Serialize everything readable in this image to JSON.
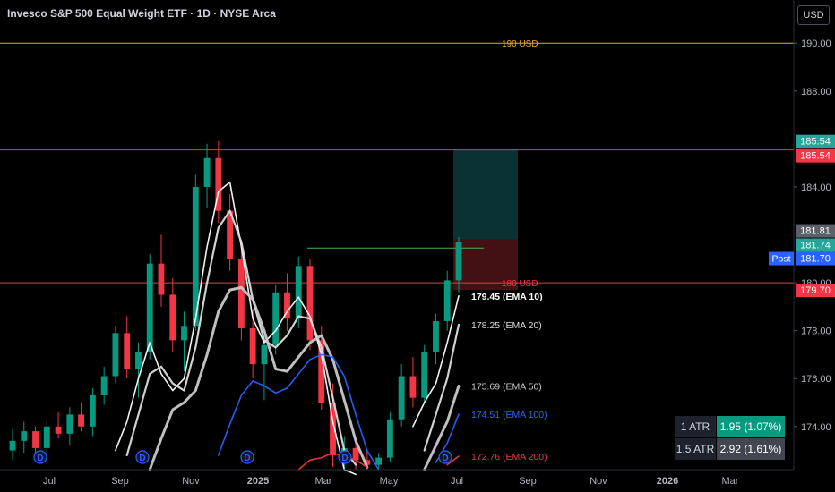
{
  "header": {
    "title": "Invesco S&P 500 Equal Weight ETF · 1D · NYSE Arca",
    "currency_button": "USD"
  },
  "colors": {
    "background": "#000000",
    "axis_text": "#b2b5be",
    "ema10": "#ffffff",
    "ema20": "#dcdcdc",
    "ema50": "#c9c9c9",
    "ema100": "#2962ff",
    "ema200": "#f23645",
    "resistance_line": "#f23645",
    "level_190": "#f5a623",
    "target_zone": "#0d3b3b",
    "stop_zone": "#4a1216",
    "entry_line": "#4caf50",
    "price_label_teal": "#26a69a",
    "price_label_red": "#f23645",
    "price_label_gray": "#5d606b",
    "price_label_blue": "#2962ff",
    "atr_green": "#089981",
    "atr_gray": "#434651"
  },
  "chart_data": {
    "type": "candlestick",
    "y_axis": {
      "min": 172.2,
      "max": 191.8,
      "ticks": [
        "190.00",
        "188.00",
        "184.00",
        "180.00",
        "178.00",
        "176.00",
        "174.00"
      ],
      "tick_values": [
        190,
        188,
        184,
        180,
        178,
        176,
        174
      ]
    },
    "x_axis": {
      "labels": [
        "Jul",
        "Sep",
        "Nov",
        "2025",
        "Mar",
        "May",
        "Jul",
        "Sep",
        "Nov",
        "2026",
        "Mar"
      ]
    },
    "horizontal_levels": [
      {
        "value": 190,
        "label": "190 USD",
        "color": "#f5a623"
      },
      {
        "value": 185.54,
        "label": "",
        "color": "#f23645"
      },
      {
        "value": 180,
        "label": "180 USD",
        "color": "#f23645"
      },
      {
        "value": 181.7,
        "label": "",
        "color": "#2962ff"
      }
    ],
    "entry_line": {
      "value": 181.45
    },
    "position": {
      "target": 185.54,
      "entry": 181.81,
      "stop": 179.7
    },
    "price_labels": [
      {
        "text": "185.54",
        "value": 185.54,
        "color": "#26a69a",
        "offset": -8
      },
      {
        "text": "185.54",
        "value": 185.54,
        "color": "#f23645",
        "offset": 8
      },
      {
        "text": "181.81",
        "value": 181.81,
        "color": "#5d606b",
        "offset": -8
      },
      {
        "text": "181.74",
        "value": 181.74,
        "color": "#26a69a",
        "offset": 8
      },
      {
        "text": "181.70",
        "value": 181.7,
        "color": "#2962ff",
        "offset": 24
      },
      {
        "text": "179.70",
        "value": 179.7,
        "color": "#f23645",
        "offset": 0
      }
    ],
    "post_label": "Post",
    "ema_labels": [
      {
        "text": "179.45 (EMA 10)",
        "value": 179.45,
        "color": "#ffffff"
      },
      {
        "text": "178.25 (EMA 20)",
        "value": 178.25,
        "color": "#dcdcdc"
      },
      {
        "text": "175.69 (EMA 50)",
        "value": 175.69,
        "color": "#c9c9c9"
      },
      {
        "text": "174.51 (EMA 100)",
        "value": 174.51,
        "color": "#2962ff"
      },
      {
        "text": "172.76 (EMA 200)",
        "value": 172.76,
        "color": "#f23645"
      }
    ],
    "dividend_marker": "D",
    "series": [
      {
        "name": "EMA 10",
        "color": "#ffffff",
        "values": [
          null,
          null,
          null,
          null,
          null,
          null,
          null,
          null,
          null,
          173.0,
          174.2,
          176.0,
          177.5,
          176.2,
          175.5,
          176.0,
          178.5,
          181.5,
          183.8,
          184.2,
          181.5,
          178.5,
          177.5,
          178.0,
          178.8,
          179.4,
          178.6,
          177.0,
          174.2,
          172.2,
          172.0,
          null,
          null,
          null,
          null,
          174.0,
          175.0,
          175.8,
          177.5,
          179.45
        ]
      },
      {
        "name": "EMA 20",
        "color": "#dcdcdc",
        "values": [
          null,
          null,
          null,
          null,
          null,
          null,
          null,
          null,
          null,
          null,
          172.8,
          174.5,
          176.2,
          176.5,
          175.8,
          175.5,
          177.3,
          180.0,
          182.3,
          183.0,
          181.7,
          179.3,
          177.6,
          177.3,
          177.8,
          178.6,
          178.5,
          177.3,
          175.2,
          173.0,
          172.4,
          null,
          null,
          null,
          null,
          null,
          173.0,
          174.5,
          176.0,
          178.25
        ]
      },
      {
        "name": "EMA 50",
        "color": "#c9c9c9",
        "values": [
          null,
          null,
          null,
          null,
          null,
          null,
          null,
          null,
          null,
          null,
          null,
          null,
          172.2,
          173.5,
          174.7,
          175.0,
          175.5,
          177.0,
          178.8,
          179.7,
          179.8,
          179.3,
          178.0,
          176.4,
          176.3,
          176.9,
          177.5,
          177.8,
          176.8,
          175.1,
          173.4,
          172.3,
          null,
          null,
          null,
          null,
          172.2,
          173.2,
          174.2,
          175.69
        ]
      },
      {
        "name": "EMA 100",
        "color": "#2962ff",
        "values": [
          null,
          null,
          null,
          null,
          null,
          null,
          null,
          null,
          null,
          null,
          null,
          null,
          null,
          null,
          null,
          null,
          null,
          null,
          172.8,
          174.1,
          175.3,
          175.9,
          175.7,
          175.4,
          175.6,
          176.2,
          176.8,
          177.0,
          176.9,
          176.1,
          174.5,
          173.0,
          172.2,
          null,
          null,
          null,
          null,
          172.5,
          173.3,
          174.51
        ]
      },
      {
        "name": "EMA 200",
        "color": "#f23645",
        "values": [
          null,
          null,
          null,
          null,
          null,
          null,
          null,
          null,
          null,
          null,
          null,
          null,
          null,
          null,
          null,
          null,
          null,
          null,
          null,
          null,
          null,
          null,
          null,
          null,
          null,
          172.2,
          172.6,
          172.7,
          172.9,
          172.75,
          172.6,
          172.3,
          null,
          null,
          null,
          null,
          null,
          null,
          172.4,
          172.76
        ]
      }
    ],
    "candles": [
      [
        173.0,
        173.9,
        172.6,
        173.4
      ],
      [
        173.4,
        174.2,
        172.9,
        173.8
      ],
      [
        173.8,
        174.0,
        172.7,
        173.1
      ],
      [
        173.1,
        174.3,
        172.8,
        174.0
      ],
      [
        174.0,
        174.6,
        173.5,
        173.7
      ],
      [
        173.7,
        174.8,
        173.2,
        174.5
      ],
      [
        174.5,
        175.0,
        173.8,
        174.0
      ],
      [
        174.0,
        175.6,
        173.6,
        175.3
      ],
      [
        175.3,
        176.5,
        174.9,
        176.1
      ],
      [
        176.1,
        178.2,
        175.8,
        177.9
      ],
      [
        177.9,
        178.6,
        176.0,
        176.4
      ],
      [
        176.4,
        177.5,
        175.2,
        177.1
      ],
      [
        177.1,
        181.2,
        176.8,
        180.8
      ],
      [
        180.8,
        182.0,
        179.0,
        179.5
      ],
      [
        179.5,
        180.2,
        177.1,
        177.6
      ],
      [
        177.6,
        178.8,
        176.3,
        178.2
      ],
      [
        178.2,
        184.5,
        178.0,
        184.0
      ],
      [
        184.0,
        185.8,
        183.1,
        185.2
      ],
      [
        185.2,
        185.9,
        182.5,
        183.0
      ],
      [
        183.0,
        183.7,
        180.5,
        181.0
      ],
      [
        181.0,
        181.8,
        177.6,
        178.1
      ],
      [
        178.1,
        178.9,
        176.0,
        176.6
      ],
      [
        176.6,
        177.8,
        175.1,
        177.4
      ],
      [
        177.4,
        179.9,
        177.0,
        179.6
      ],
      [
        179.6,
        180.4,
        178.0,
        178.5
      ],
      [
        178.5,
        181.1,
        178.1,
        180.7
      ],
      [
        180.7,
        181.0,
        177.2,
        177.6
      ],
      [
        177.6,
        178.2,
        174.7,
        175.0
      ],
      [
        175.0,
        175.8,
        172.3,
        172.8
      ],
      [
        172.8,
        173.6,
        172.2,
        173.1
      ],
      [
        173.1,
        173.4,
        172.2,
        172.6
      ],
      [
        172.6,
        173.0,
        172.2,
        172.4
      ],
      [
        172.4,
        172.9,
        172.2,
        172.7
      ],
      [
        172.7,
        174.6,
        172.5,
        174.3
      ],
      [
        174.3,
        176.6,
        174.0,
        176.1
      ],
      [
        176.1,
        176.9,
        174.8,
        175.2
      ],
      [
        175.2,
        177.4,
        175.0,
        177.1
      ],
      [
        177.1,
        178.7,
        176.6,
        178.4
      ],
      [
        178.4,
        180.5,
        178.0,
        180.1
      ],
      [
        180.1,
        181.9,
        179.6,
        181.7
      ]
    ]
  },
  "atr_table": [
    {
      "label": "1 ATR",
      "value": "1.95 (1.07%)",
      "color": "#089981"
    },
    {
      "label": "1.5 ATR",
      "value": "2.92 (1.61%)",
      "color": "#434651"
    }
  ]
}
